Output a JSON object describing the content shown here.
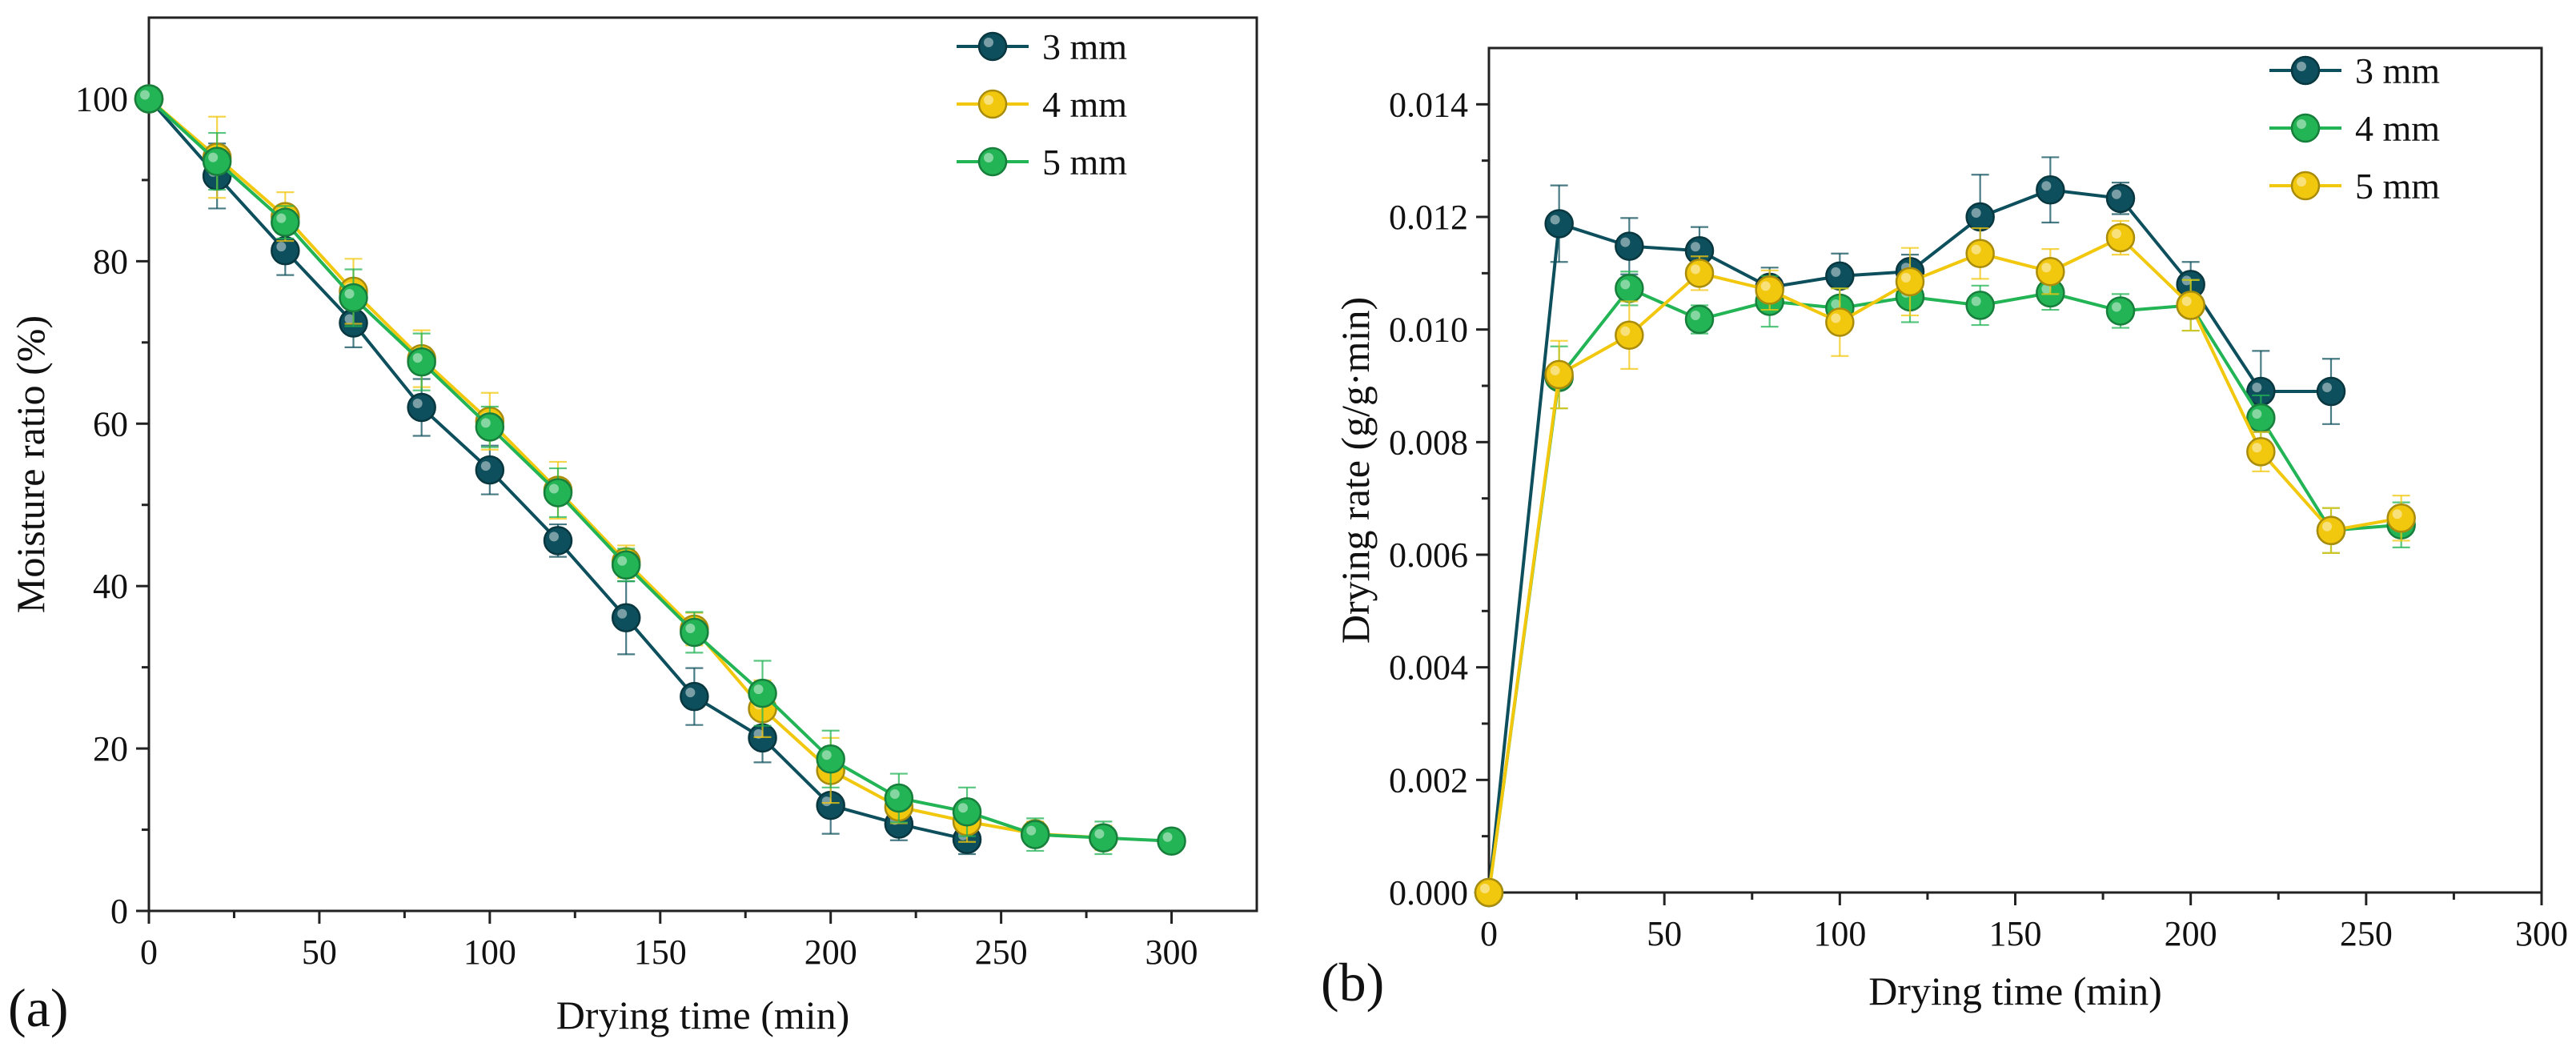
{
  "chart_data": [
    {
      "panel": "(a)",
      "type": "line",
      "xlabel": "Drying time (min)",
      "ylabel": "Moisture ratio (%)",
      "xlim": [
        0,
        325
      ],
      "ylim": [
        0,
        110
      ],
      "xticks": [
        0,
        50,
        100,
        150,
        200,
        250,
        300
      ],
      "yticks": [
        0,
        20,
        40,
        60,
        80,
        100
      ],
      "legend_position": "top-right",
      "series": [
        {
          "name": "3 mm",
          "color": "#0d4f5c",
          "x": [
            0,
            20,
            40,
            60,
            80,
            100,
            120,
            140,
            160,
            180,
            200,
            220,
            240
          ],
          "values": [
            100,
            90.5,
            81.3,
            72.4,
            62.0,
            54.3,
            45.6,
            36.1,
            26.4,
            21.3,
            13.0,
            10.7,
            8.8
          ],
          "errors": [
            0.5,
            4.0,
            3.0,
            3.0,
            3.5,
            3.0,
            2.0,
            4.5,
            3.5,
            3.0,
            3.5,
            2.0,
            1.8
          ]
        },
        {
          "name": "4 mm",
          "color": "#f2c80f",
          "x": [
            0,
            20,
            40,
            60,
            80,
            100,
            120,
            140,
            160,
            180,
            200,
            220,
            240,
            260,
            280
          ],
          "values": [
            100,
            92.8,
            85.5,
            76.3,
            68.0,
            60.3,
            51.8,
            43.0,
            34.7,
            24.9,
            17.3,
            12.8,
            11.0,
            9.5,
            9.0
          ],
          "errors": [
            0.5,
            5.0,
            3.0,
            4.0,
            3.5,
            3.5,
            3.5,
            2.0,
            2.0,
            3.5,
            4.0,
            2.0,
            2.5,
            1.5,
            1.5
          ]
        },
        {
          "name": "5 mm",
          "color": "#22b455",
          "x": [
            0,
            20,
            40,
            60,
            80,
            100,
            120,
            140,
            160,
            180,
            200,
            220,
            240,
            260,
            280,
            300
          ],
          "values": [
            100,
            92.3,
            84.8,
            75.5,
            67.6,
            59.6,
            51.5,
            42.6,
            34.3,
            26.8,
            18.7,
            13.9,
            12.2,
            9.4,
            9.0,
            8.6
          ],
          "errors": [
            0.5,
            3.5,
            2.0,
            3.5,
            3.5,
            2.5,
            3.0,
            2.0,
            2.5,
            4.0,
            3.5,
            3.0,
            3.0,
            2.0,
            2.0,
            1.2
          ]
        }
      ]
    },
    {
      "panel": "(b)",
      "type": "line",
      "xlabel": "Drying time (min)",
      "ylabel": "Drying rate (g/g·min)",
      "xlim": [
        0,
        300
      ],
      "ylim": [
        0,
        0.015
      ],
      "xticks": [
        0,
        50,
        100,
        150,
        200,
        250,
        300
      ],
      "yticks": [
        "0.000",
        "0.002",
        "0.004",
        "0.006",
        "0.008",
        "0.010",
        "0.012",
        "0.014"
      ],
      "legend_position": "top-right",
      "series": [
        {
          "name": "3 mm",
          "color": "#0d4f5c",
          "x": [
            0,
            20,
            40,
            60,
            80,
            100,
            120,
            140,
            160,
            180,
            200,
            220,
            240
          ],
          "values": [
            0,
            0.01188,
            0.01148,
            0.0114,
            0.01075,
            0.01095,
            0.01103,
            0.012,
            0.01248,
            0.01233,
            0.0108,
            0.0089,
            0.0089
          ],
          "errors": [
            5e-05,
            0.00068,
            0.0005,
            0.00042,
            0.00035,
            0.0004,
            0.0003,
            0.00075,
            0.00058,
            0.00028,
            0.0004,
            0.00072,
            0.00058
          ]
        },
        {
          "name": "4 mm",
          "color": "#22b455",
          "x": [
            0,
            20,
            40,
            60,
            80,
            100,
            120,
            140,
            160,
            180,
            200,
            220,
            240,
            260
          ],
          "values": [
            0,
            0.00915,
            0.01073,
            0.01018,
            0.0105,
            0.01038,
            0.01058,
            0.01043,
            0.01065,
            0.01033,
            0.01043,
            0.00843,
            0.00643,
            0.00653
          ],
          "errors": [
            5e-05,
            0.00055,
            0.0003,
            0.00025,
            0.00045,
            0.00035,
            0.00045,
            0.00035,
            0.0003,
            0.0003,
            0.00045,
            0.0004,
            0.0004,
            0.0004
          ]
        },
        {
          "name": "5 mm",
          "color": "#f2c80f",
          "x": [
            0,
            20,
            40,
            60,
            80,
            100,
            120,
            140,
            160,
            180,
            200,
            220,
            240,
            260
          ],
          "values": [
            0,
            0.0092,
            0.0099,
            0.011,
            0.0107,
            0.01013,
            0.01085,
            0.01135,
            0.01103,
            0.01163,
            0.01043,
            0.00783,
            0.00643,
            0.00665
          ],
          "errors": [
            5e-05,
            0.0006,
            0.0006,
            0.0003,
            0.00035,
            0.0006,
            0.0006,
            0.00045,
            0.0004,
            0.0003,
            0.00045,
            0.00035,
            0.0004,
            0.0004
          ]
        }
      ]
    }
  ]
}
